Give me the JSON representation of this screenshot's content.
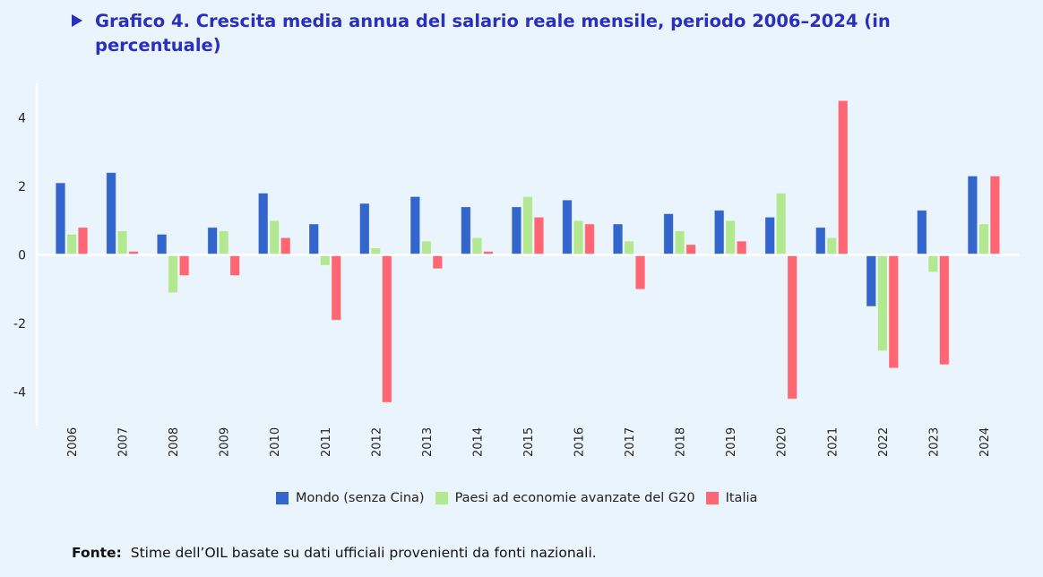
{
  "header": {
    "arrow_icon": "triangle-right-icon",
    "title": "Grafico 4. Crescita media annua del salario reale mensile, periodo 2006–2024 (in percentuale)"
  },
  "footer": {
    "label": "Fonte:",
    "text": "Stime dell’OIL basate su dati ufficiali provenienti da fonti nazionali."
  },
  "colors": {
    "series": [
      "#3366CC",
      "#B2E890",
      "#FF6673"
    ],
    "title": "#2A2FBE",
    "background": "#EAF4FC"
  },
  "chart_data": {
    "type": "bar",
    "title": "Grafico 4. Crescita media annua del salario reale mensile, periodo 2006–2024 (in percentuale)",
    "xlabel": "",
    "ylabel": "",
    "ylim": [
      -5,
      5
    ],
    "yticks": [
      4,
      2,
      0,
      -2,
      -4
    ],
    "grid": false,
    "legend_position": "bottom",
    "categories": [
      "2006",
      "2007",
      "2008",
      "2009",
      "2010",
      "2011",
      "2012",
      "2013",
      "2014",
      "2015",
      "2016",
      "2017",
      "2018",
      "2019",
      "2020",
      "2021",
      "2022",
      "2023",
      "2024"
    ],
    "series": [
      {
        "name": "Mondo (senza Cina)",
        "values": [
          2.1,
          2.4,
          0.6,
          0.8,
          1.8,
          0.9,
          1.5,
          1.7,
          1.4,
          1.4,
          1.6,
          0.9,
          1.2,
          1.3,
          1.1,
          0.8,
          -1.5,
          1.3,
          2.3
        ]
      },
      {
        "name": "Paesi ad economie avanzate del G20",
        "values": [
          0.6,
          0.7,
          -1.1,
          0.7,
          1.0,
          -0.3,
          0.2,
          0.4,
          0.5,
          1.7,
          1.0,
          0.4,
          0.7,
          1.0,
          1.8,
          0.5,
          -2.8,
          -0.5,
          0.9
        ]
      },
      {
        "name": "Italia",
        "values": [
          0.8,
          0.1,
          -0.6,
          -0.6,
          0.5,
          -1.9,
          -4.3,
          -0.4,
          0.1,
          1.1,
          0.9,
          -1.0,
          0.3,
          0.4,
          -4.2,
          4.5,
          -3.3,
          -3.2,
          2.3
        ]
      }
    ]
  }
}
